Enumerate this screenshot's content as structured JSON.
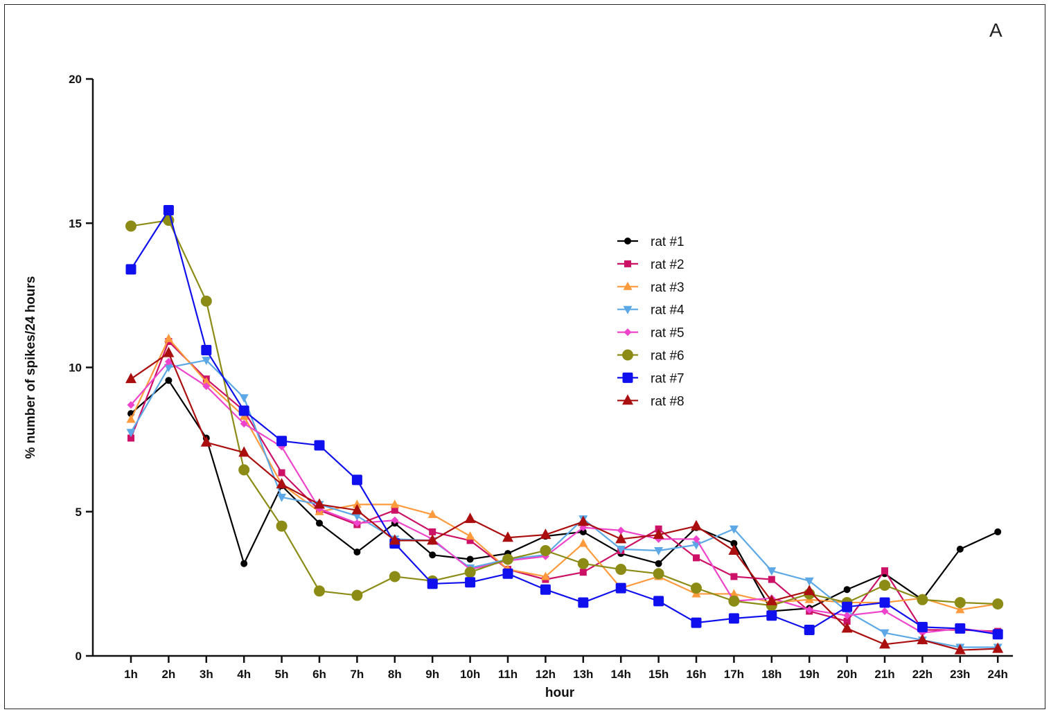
{
  "panel_label": "A",
  "chart_data": {
    "type": "line",
    "title": "",
    "xlabel": "hour",
    "ylabel": "% number of spikes/24 hours",
    "ylim": [
      0,
      20
    ],
    "yticks": [
      0,
      5,
      10,
      15,
      20
    ],
    "grid": false,
    "legend_position": "center-right",
    "categories": [
      "1h",
      "2h",
      "3h",
      "4h",
      "5h",
      "6h",
      "7h",
      "8h",
      "9h",
      "10h",
      "11h",
      "12h",
      "13h",
      "14h",
      "15h",
      "16h",
      "17h",
      "18h",
      "19h",
      "20h",
      "21h",
      "22h",
      "23h",
      "24h"
    ],
    "series": [
      {
        "name": "rat #1",
        "color": "#000000",
        "marker": "circle-small",
        "values": [
          8.4,
          9.55,
          7.55,
          3.2,
          5.9,
          4.6,
          3.6,
          4.6,
          3.5,
          3.35,
          3.55,
          4.15,
          4.3,
          3.55,
          3.2,
          4.45,
          3.9,
          1.55,
          1.65,
          2.3,
          2.85,
          1.95,
          3.7,
          4.3
        ]
      },
      {
        "name": "rat #2",
        "color": "#cc1166",
        "marker": "square-small",
        "values": [
          7.55,
          10.9,
          9.6,
          8.5,
          6.35,
          5.05,
          4.55,
          5.05,
          4.3,
          4.0,
          3.0,
          2.65,
          2.9,
          3.65,
          4.4,
          3.4,
          2.75,
          2.65,
          1.55,
          1.2,
          2.95,
          0.9,
          0.9,
          0.85
        ]
      },
      {
        "name": "rat #3",
        "color": "#ff9a3c",
        "marker": "triangle-up",
        "values": [
          8.2,
          11.0,
          9.5,
          8.3,
          5.95,
          5.0,
          5.25,
          5.25,
          4.9,
          4.15,
          3.0,
          2.75,
          3.9,
          2.35,
          2.75,
          2.15,
          2.15,
          1.85,
          1.95,
          1.85,
          1.85,
          2.0,
          1.6,
          1.8
        ]
      },
      {
        "name": "rat #4",
        "color": "#5ca8e6",
        "marker": "triangle-down",
        "values": [
          7.75,
          10.0,
          10.25,
          8.95,
          5.5,
          5.25,
          4.85,
          4.05,
          4.0,
          3.05,
          3.35,
          3.5,
          4.75,
          3.7,
          3.65,
          3.85,
          4.4,
          2.95,
          2.6,
          1.55,
          0.8,
          0.55,
          0.3,
          0.3
        ]
      },
      {
        "name": "rat #5",
        "color": "#ee44cc",
        "marker": "diamond",
        "values": [
          8.7,
          10.2,
          9.35,
          8.05,
          7.25,
          5.1,
          4.6,
          4.7,
          4.05,
          3.0,
          3.3,
          3.45,
          4.45,
          4.35,
          4.05,
          4.05,
          1.9,
          2.0,
          1.6,
          1.4,
          1.55,
          0.8,
          0.95,
          0.8
        ]
      },
      {
        "name": "rat #6",
        "color": "#8b8b16",
        "marker": "circle-large",
        "values": [
          14.9,
          15.1,
          12.3,
          6.45,
          4.5,
          2.25,
          2.1,
          2.75,
          2.6,
          2.9,
          3.35,
          3.65,
          3.2,
          3.0,
          2.85,
          2.35,
          1.9,
          1.75,
          2.15,
          1.85,
          2.45,
          1.95,
          1.85,
          1.8
        ]
      },
      {
        "name": "rat #7",
        "color": "#1010ee",
        "marker": "square-large",
        "values": [
          13.4,
          15.45,
          10.6,
          8.5,
          7.45,
          7.3,
          6.1,
          3.9,
          2.5,
          2.55,
          2.85,
          2.3,
          1.85,
          2.35,
          1.9,
          1.15,
          1.3,
          1.4,
          0.9,
          1.7,
          1.85,
          1.0,
          0.95,
          0.75
        ]
      },
      {
        "name": "rat #8",
        "color": "#aa0e0e",
        "marker": "triangle-up-large",
        "values": [
          9.6,
          10.5,
          7.4,
          7.05,
          5.95,
          5.25,
          5.05,
          4.0,
          4.0,
          4.75,
          4.1,
          4.2,
          4.65,
          4.05,
          4.2,
          4.5,
          3.65,
          1.9,
          2.25,
          0.95,
          0.4,
          0.55,
          0.2,
          0.25
        ]
      }
    ]
  }
}
